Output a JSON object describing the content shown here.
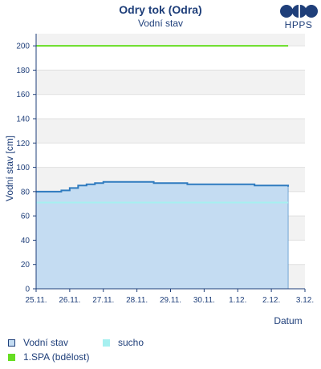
{
  "header": {
    "title": "Odry tok (Odra)",
    "subtitle": "Vodní stav",
    "logo_text": "HPPS"
  },
  "chart_data": {
    "type": "line",
    "ylabel": "Vodní stav [cm]",
    "xlabel": "Datum",
    "ylim": [
      0,
      210
    ],
    "yticks": [
      0,
      20,
      40,
      60,
      80,
      100,
      120,
      140,
      160,
      180,
      200
    ],
    "xlim": [
      "2024-11-25",
      "2024-12-03"
    ],
    "xticks": [
      "25.11.",
      "26.11.",
      "27.11.",
      "28.11.",
      "29.11.",
      "30.11.",
      "1.12.",
      "2.12.",
      "3.12."
    ],
    "grid": "horizontal alternating bands",
    "series": [
      {
        "name": "Vodní stav",
        "kind": "area",
        "color": "#2f7bbf",
        "fill": "#c4dcf2",
        "points": [
          [
            "2024-11-25 00:00",
            80
          ],
          [
            "2024-11-25 12:00",
            80
          ],
          [
            "2024-11-25 18:00",
            81
          ],
          [
            "2024-11-26 00:00",
            83
          ],
          [
            "2024-11-26 06:00",
            85
          ],
          [
            "2024-11-26 12:00",
            86
          ],
          [
            "2024-11-26 18:00",
            87
          ],
          [
            "2024-11-27 00:00",
            88
          ],
          [
            "2024-11-27 12:00",
            88
          ],
          [
            "2024-11-28 00:00",
            88
          ],
          [
            "2024-11-28 12:00",
            87
          ],
          [
            "2024-11-29 00:00",
            87
          ],
          [
            "2024-11-29 12:00",
            86
          ],
          [
            "2024-11-30 00:00",
            86
          ],
          [
            "2024-11-30 12:00",
            86
          ],
          [
            "2024-12-01 00:00",
            86
          ],
          [
            "2024-12-01 12:00",
            85
          ],
          [
            "2024-12-02 00:00",
            85
          ],
          [
            "2024-12-02 12:00",
            84
          ]
        ]
      },
      {
        "name": "sucho",
        "kind": "hline",
        "color": "#a6f0f0",
        "value": 71,
        "x_range": [
          "2024-11-25 00:00",
          "2024-12-02 12:00"
        ]
      },
      {
        "name": "1.SPA (bdělost)",
        "kind": "hline",
        "color": "#66dd22",
        "value": 200,
        "x_range": [
          "2024-11-25 00:00",
          "2024-12-02 12:00"
        ]
      }
    ]
  },
  "legend": {
    "items": [
      {
        "label": "Vodní stav",
        "swatch_fill": "#c4dcf2",
        "swatch_border": "#1f3f7a"
      },
      {
        "label": "sucho",
        "swatch_fill": "#a6f0f0",
        "swatch_border": "#a6f0f0"
      },
      {
        "label": "1.SPA (bdělost)",
        "swatch_fill": "#66dd22",
        "swatch_border": "#66dd22"
      }
    ]
  }
}
